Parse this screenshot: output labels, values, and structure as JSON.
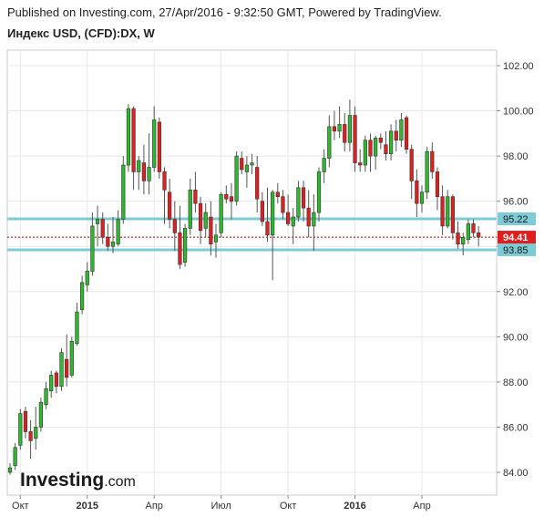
{
  "header": {
    "published": "Published on Investing.com, 27/Apr/2016 - 9:32:50 GMT, Powered by TradingView.",
    "symbol": "Индекс USD, (CFD):DX, W"
  },
  "logo": {
    "brand": "Investing",
    "suffix": ".com"
  },
  "colors": {
    "up": "#2eb82e",
    "down": "#e02020",
    "level_line": "#7ccbd6",
    "level_label_bg": "#7ccbd6",
    "current_bg": "#e01e1e",
    "current_line": "#b00000",
    "grid": "#e8e8e8",
    "axis": "#888888"
  },
  "chart_data": {
    "type": "candlestick",
    "timeframe": "W",
    "ylim": [
      83.0,
      103.0
    ],
    "y_ticks": [
      "84.00",
      "86.00",
      "88.00",
      "90.00",
      "92.00",
      "94.00",
      "96.00",
      "98.00",
      "100.00",
      "102.00"
    ],
    "x_ticks": [
      {
        "label": "Окт",
        "index": 2,
        "bold": false
      },
      {
        "label": "2015",
        "index": 15,
        "bold": true
      },
      {
        "label": "Апр",
        "index": 28,
        "bold": false
      },
      {
        "label": "Июл",
        "index": 41,
        "bold": false
      },
      {
        "label": "Окт",
        "index": 54,
        "bold": false
      },
      {
        "label": "2016",
        "index": 67,
        "bold": true
      },
      {
        "label": "Апр",
        "index": 80,
        "bold": false
      }
    ],
    "levels": [
      {
        "label": "95.22",
        "value": 95.22
      },
      {
        "label": "93.85",
        "value": 93.85
      }
    ],
    "current": {
      "label": "94.41",
      "value": 94.41
    },
    "candles": [
      [
        84.0,
        84.4,
        83.9,
        84.2
      ],
      [
        84.3,
        85.3,
        84.1,
        85.1
      ],
      [
        85.2,
        86.8,
        85.0,
        86.6
      ],
      [
        86.7,
        86.9,
        85.5,
        85.8
      ],
      [
        85.8,
        86.3,
        84.6,
        85.4
      ],
      [
        85.5,
        86.9,
        85.0,
        86.0
      ],
      [
        86.0,
        87.3,
        85.8,
        87.1
      ],
      [
        87.0,
        88.0,
        86.8,
        87.7
      ],
      [
        87.6,
        88.5,
        87.3,
        88.3
      ],
      [
        88.4,
        88.5,
        87.5,
        87.8
      ],
      [
        87.8,
        89.5,
        87.6,
        89.3
      ],
      [
        89.0,
        90.1,
        87.8,
        88.2
      ],
      [
        88.3,
        90.0,
        88.2,
        89.8
      ],
      [
        89.7,
        91.5,
        89.6,
        91.1
      ],
      [
        91.2,
        92.7,
        91.0,
        92.4
      ],
      [
        92.3,
        93.3,
        92.0,
        92.9
      ],
      [
        92.9,
        95.5,
        92.7,
        94.9
      ],
      [
        95.0,
        95.8,
        94.0,
        95.2
      ],
      [
        95.2,
        95.5,
        94.1,
        94.4
      ],
      [
        94.4,
        95.0,
        93.8,
        94.0
      ],
      [
        94.0,
        95.3,
        93.7,
        94.2
      ],
      [
        94.1,
        95.6,
        94.0,
        95.2
      ],
      [
        95.2,
        98.0,
        95.0,
        97.6
      ],
      [
        97.6,
        100.3,
        97.3,
        100.1
      ],
      [
        100.1,
        100.2,
        96.5,
        97.3
      ],
      [
        97.3,
        98.0,
        96.5,
        97.8
      ],
      [
        97.7,
        98.5,
        96.3,
        96.9
      ],
      [
        96.9,
        99.0,
        96.3,
        97.5
      ],
      [
        97.5,
        100.2,
        97.3,
        99.6
      ],
      [
        99.5,
        99.7,
        97.0,
        97.3
      ],
      [
        97.3,
        97.5,
        95.0,
        96.5
      ],
      [
        96.4,
        97.0,
        94.8,
        95.2
      ],
      [
        95.2,
        96.0,
        93.8,
        94.6
      ],
      [
        94.6,
        95.8,
        93.0,
        93.2
      ],
      [
        93.3,
        95.0,
        93.1,
        94.8
      ],
      [
        94.8,
        97.0,
        94.5,
        96.5
      ],
      [
        96.5,
        97.3,
        95.5,
        95.9
      ],
      [
        95.9,
        96.2,
        94.1,
        94.7
      ],
      [
        94.8,
        95.9,
        94.4,
        95.5
      ],
      [
        95.3,
        96.0,
        93.6,
        94.1
      ],
      [
        94.2,
        95.0,
        93.5,
        94.5
      ],
      [
        94.6,
        96.4,
        94.4,
        96.3
      ],
      [
        96.3,
        96.7,
        95.9,
        96.1
      ],
      [
        96.2,
        96.8,
        95.2,
        96.0
      ],
      [
        96.0,
        98.2,
        95.8,
        98.0
      ],
      [
        97.9,
        98.2,
        97.2,
        97.4
      ],
      [
        97.3,
        98.0,
        96.6,
        97.6
      ],
      [
        97.6,
        98.1,
        97.2,
        97.7
      ],
      [
        97.5,
        98.0,
        95.5,
        96.1
      ],
      [
        96.0,
        96.4,
        94.9,
        95.1
      ],
      [
        95.1,
        96.6,
        94.2,
        94.5
      ],
      [
        94.5,
        96.5,
        92.5,
        96.4
      ],
      [
        96.4,
        96.8,
        95.9,
        96.2
      ],
      [
        96.2,
        96.5,
        95.2,
        95.5
      ],
      [
        95.5,
        96.3,
        94.9,
        95.0
      ],
      [
        94.9,
        95.7,
        94.1,
        95.3
      ],
      [
        95.3,
        96.9,
        95.1,
        96.6
      ],
      [
        96.6,
        96.9,
        95.1,
        95.7
      ],
      [
        95.7,
        96.5,
        94.4,
        94.9
      ],
      [
        94.9,
        96.3,
        93.8,
        95.5
      ],
      [
        95.5,
        97.5,
        95.1,
        97.3
      ],
      [
        97.3,
        98.3,
        96.8,
        97.9
      ],
      [
        97.9,
        99.8,
        97.5,
        99.3
      ],
      [
        99.3,
        100.0,
        98.7,
        99.1
      ],
      [
        99.1,
        100.2,
        98.8,
        99.4
      ],
      [
        99.4,
        99.9,
        98.2,
        98.6
      ],
      [
        98.6,
        100.5,
        98.2,
        99.8
      ],
      [
        99.8,
        100.2,
        97.3,
        97.7
      ],
      [
        97.7,
        98.3,
        97.3,
        97.6
      ],
      [
        97.6,
        98.9,
        97.3,
        98.7
      ],
      [
        98.7,
        99.0,
        97.3,
        98.0
      ],
      [
        98.0,
        98.9,
        97.4,
        98.8
      ],
      [
        98.8,
        99.0,
        98.3,
        98.6
      ],
      [
        98.5,
        99.1,
        97.8,
        98.1
      ],
      [
        98.1,
        99.4,
        97.8,
        99.1
      ],
      [
        99.1,
        99.6,
        98.2,
        98.7
      ],
      [
        98.7,
        99.9,
        98.4,
        99.6
      ],
      [
        99.7,
        99.8,
        98.1,
        98.3
      ],
      [
        98.3,
        98.5,
        96.1,
        96.9
      ],
      [
        96.9,
        97.4,
        95.3,
        95.9
      ],
      [
        95.9,
        96.7,
        95.5,
        96.4
      ],
      [
        96.4,
        98.4,
        96.1,
        98.2
      ],
      [
        98.2,
        98.6,
        97.0,
        97.3
      ],
      [
        97.3,
        97.5,
        95.6,
        96.2
      ],
      [
        96.2,
        96.7,
        94.5,
        94.9
      ],
      [
        94.9,
        96.5,
        94.8,
        96.2
      ],
      [
        96.2,
        96.3,
        94.3,
        94.6
      ],
      [
        94.6,
        95.1,
        93.9,
        94.1
      ],
      [
        94.1,
        94.6,
        93.6,
        94.4
      ],
      [
        94.3,
        95.2,
        94.1,
        95.0
      ],
      [
        95.0,
        95.2,
        94.4,
        94.6
      ],
      [
        94.6,
        94.9,
        94.0,
        94.41
      ]
    ]
  }
}
